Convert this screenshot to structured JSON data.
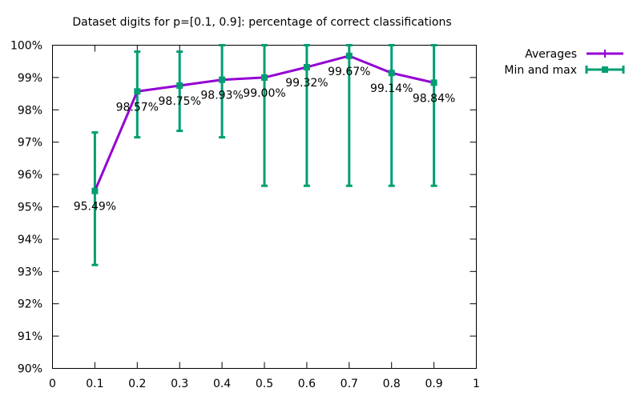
{
  "chart_data": {
    "type": "line",
    "title": "Dataset digits for p=[0.1, 0.9]: percentage of correct classifications",
    "xlabel": "",
    "ylabel": "",
    "xlim": [
      0,
      1
    ],
    "ylim": [
      90,
      100
    ],
    "x_ticks": [
      0,
      0.1,
      0.2,
      0.3,
      0.4,
      0.5,
      0.6,
      0.7,
      0.8,
      0.9,
      1
    ],
    "x_tick_labels": [
      "0",
      "0.1",
      "0.2",
      "0.3",
      "0.4",
      "0.5",
      "0.6",
      "0.7",
      "0.8",
      "0.9",
      "1"
    ],
    "y_ticks": [
      90,
      91,
      92,
      93,
      94,
      95,
      96,
      97,
      98,
      99,
      100
    ],
    "y_tick_labels": [
      "90%",
      "91%",
      "92%",
      "93%",
      "94%",
      "95%",
      "96%",
      "97%",
      "98%",
      "99%",
      "100%"
    ],
    "grid": false,
    "legend_position": "top-right outside",
    "series": [
      {
        "name": "Averages",
        "color": "#9400d3",
        "x": [
          0.1,
          0.2,
          0.3,
          0.4,
          0.5,
          0.6,
          0.7,
          0.8,
          0.9
        ],
        "values": [
          95.49,
          98.57,
          98.75,
          98.93,
          99.0,
          99.32,
          99.67,
          99.14,
          98.84
        ],
        "labels": [
          "95.49%",
          "98.57%",
          "98.75%",
          "98.93%",
          "99.00%",
          "99.32%",
          "99.67%",
          "99.14%",
          "98.84%"
        ]
      },
      {
        "name": "Min and max",
        "color": "#009e73",
        "x": [
          0.1,
          0.2,
          0.3,
          0.4,
          0.5,
          0.6,
          0.7,
          0.8,
          0.9
        ],
        "min": [
          93.2,
          97.15,
          97.35,
          97.15,
          95.65,
          95.65,
          95.65,
          95.65,
          95.65
        ],
        "max": [
          97.3,
          99.8,
          99.8,
          100,
          100,
          100,
          100,
          100,
          100
        ]
      }
    ]
  }
}
